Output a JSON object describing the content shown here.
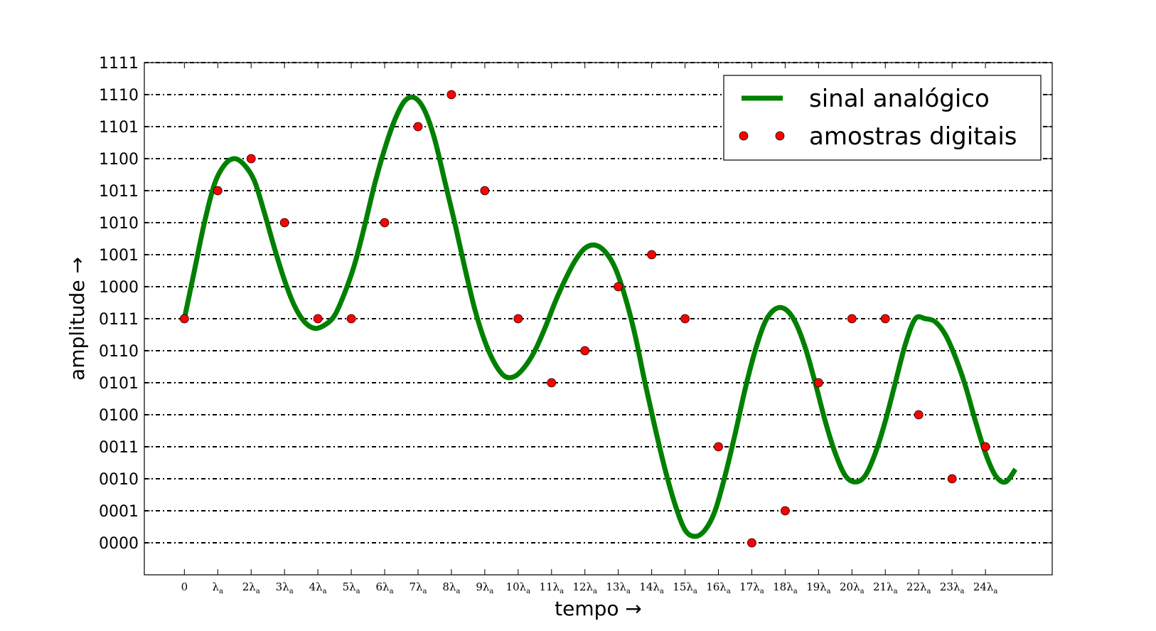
{
  "chart_data": {
    "type": "line",
    "xlabel": "tempo →",
    "ylabel": "amplitude →",
    "x_tick_labels": [
      "0",
      "λa",
      "2λa",
      "3λa",
      "4λa",
      "5λa",
      "6λa",
      "7λa",
      "8λa",
      "9λa",
      "10λa",
      "11λa",
      "12λa",
      "13λa",
      "14λa",
      "15λa",
      "16λa",
      "17λa",
      "18λa",
      "19λa",
      "20λa",
      "21λa",
      "22λa",
      "23λa",
      "24λa"
    ],
    "y_tick_labels": [
      "0000",
      "0001",
      "0010",
      "0011",
      "0100",
      "0101",
      "0110",
      "0111",
      "1000",
      "1001",
      "1010",
      "1011",
      "1100",
      "1101",
      "1110",
      "1111"
    ],
    "xlim": [
      -1.2,
      26.0
    ],
    "ylim": [
      -1,
      15
    ],
    "grid": "horizontal dash-dot",
    "legend": {
      "placement": "top-right",
      "entries": [
        "sinal analógico",
        "amostras digitais"
      ]
    },
    "series": [
      {
        "name": "sinal analógico",
        "style": "line",
        "color": "#008000",
        "x": [
          0,
          0.3,
          0.6,
          0.9,
          1.2,
          1.5,
          1.8,
          2.1,
          2.4,
          2.7,
          3.0,
          3.3,
          3.6,
          3.9,
          4.2,
          4.5,
          4.8,
          5.1,
          5.4,
          5.7,
          6.0,
          6.3,
          6.6,
          6.9,
          7.2,
          7.5,
          7.8,
          8.1,
          8.4,
          8.7,
          9.0,
          9.3,
          9.6,
          9.9,
          10.2,
          10.5,
          10.8,
          11.1,
          11.4,
          11.7,
          12.0,
          12.3,
          12.6,
          12.9,
          13.2,
          13.5,
          13.8,
          14.1,
          14.4,
          14.7,
          15.0,
          15.3,
          15.6,
          15.9,
          16.2,
          16.5,
          16.8,
          17.1,
          17.4,
          17.7,
          18.0,
          18.3,
          18.6,
          18.9,
          19.2,
          19.5,
          19.8,
          20.1,
          20.4,
          20.7,
          21.0,
          21.3,
          21.6,
          21.9,
          22.2,
          22.5,
          22.8,
          23.1,
          23.4,
          23.7,
          24.0,
          24.3,
          24.6,
          24.9
        ],
        "y": [
          7.0,
          8.5,
          10.0,
          11.2,
          11.8,
          12.0,
          11.8,
          11.3,
          10.3,
          9.2,
          8.2,
          7.4,
          6.9,
          6.7,
          6.8,
          7.1,
          7.8,
          8.7,
          9.9,
          11.2,
          12.3,
          13.2,
          13.8,
          13.9,
          13.5,
          12.6,
          11.3,
          10.0,
          8.6,
          7.3,
          6.3,
          5.6,
          5.2,
          5.2,
          5.5,
          6.0,
          6.7,
          7.5,
          8.2,
          8.8,
          9.2,
          9.3,
          9.1,
          8.6,
          7.7,
          6.5,
          5.0,
          3.6,
          2.3,
          1.2,
          0.4,
          0.2,
          0.4,
          1.0,
          2.1,
          3.4,
          4.8,
          6.0,
          6.9,
          7.3,
          7.3,
          6.9,
          6.1,
          5.0,
          3.8,
          2.8,
          2.1,
          1.9,
          2.1,
          2.8,
          3.8,
          5.0,
          6.2,
          7.0,
          7.0,
          6.9,
          6.5,
          5.8,
          4.9,
          3.8,
          2.8,
          2.1,
          1.9,
          2.3
        ]
      },
      {
        "name": "amostras digitais",
        "style": "markers",
        "color": "#ff0000",
        "x": [
          0,
          1,
          2,
          3,
          4,
          5,
          6,
          7,
          8,
          9,
          10,
          11,
          12,
          13,
          14,
          15,
          16,
          17,
          18,
          19,
          20,
          21,
          22,
          23,
          24
        ],
        "y": [
          7,
          11,
          12,
          10,
          7,
          7,
          10,
          13,
          14,
          11,
          7,
          5,
          6,
          8,
          9,
          7,
          3,
          0,
          1,
          5,
          7,
          7,
          4,
          2,
          3
        ]
      }
    ]
  }
}
